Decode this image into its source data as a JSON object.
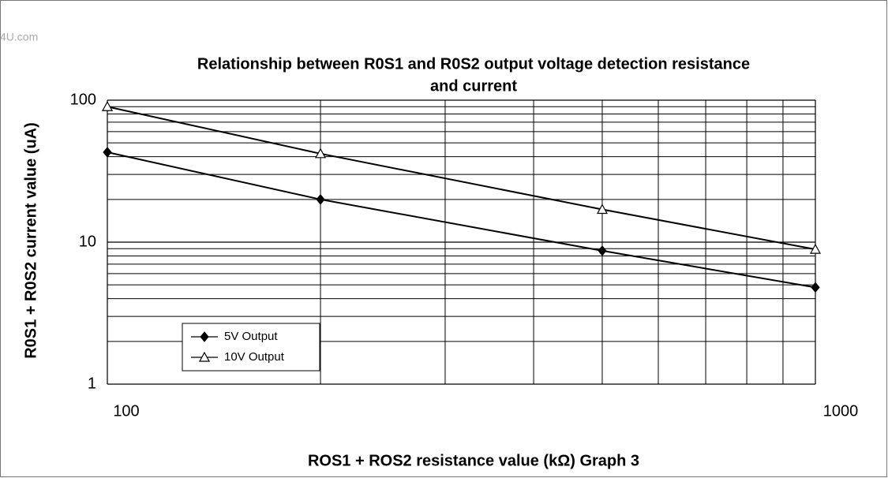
{
  "chart_data": {
    "type": "line",
    "watermark": "4U.com",
    "title": [
      "Relationship between R0S1 and R0S2 output voltage detection resistance",
      "and current"
    ],
    "xlabel": "ROS1 + ROS2 resistance value (kΩ) Graph 3",
    "ylabel": "R0S1 + R0S2 current value (uA)",
    "x": [
      100,
      200,
      500,
      1000
    ],
    "series": [
      {
        "name": "5V Output",
        "color": "#000000",
        "marker": "diamond-filled",
        "values": [
          43,
          20,
          8.7,
          4.8
        ]
      },
      {
        "name": "10V Output",
        "color": "#000000",
        "marker": "triangle-open",
        "values": [
          90,
          42,
          17,
          8.9
        ]
      }
    ],
    "xlim": [
      100,
      1000
    ],
    "ylim": [
      1,
      100
    ],
    "xticks": [
      100,
      1000
    ],
    "yticks": [
      1,
      10,
      100
    ],
    "xminorticks": [
      200,
      300,
      400,
      500,
      600,
      700,
      800,
      900
    ],
    "yminorticks": [
      2,
      3,
      4,
      5,
      6,
      7,
      8,
      9,
      20,
      30,
      40,
      50,
      60,
      70,
      80,
      90
    ],
    "xscale": "log",
    "yscale": "log",
    "grid": true,
    "legend": "lower left"
  }
}
